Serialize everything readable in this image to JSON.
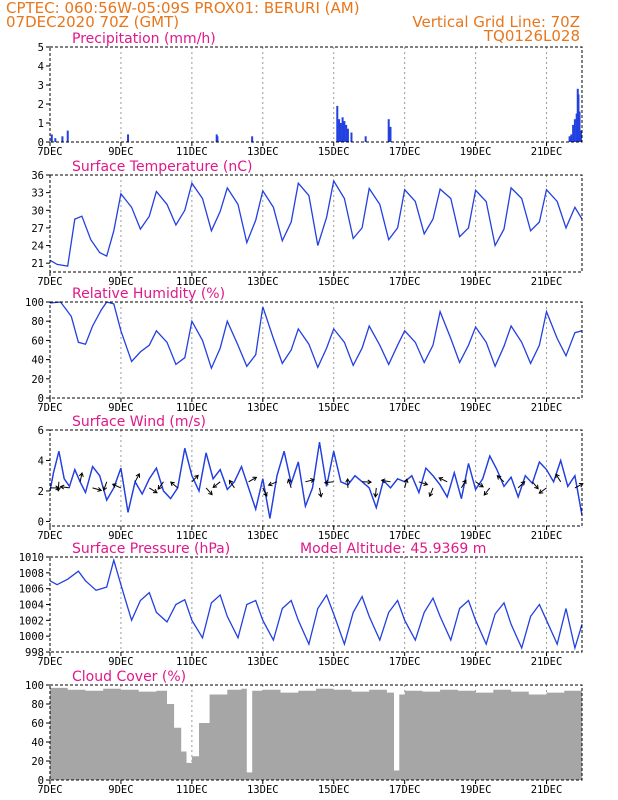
{
  "header": {
    "line1": "CPTEC:   060:56W-05:09S   PROX01: BERURI (AM)",
    "line2_left": "07DEC2020 70Z (GMT)",
    "line2_right": "Vertical Grid Line: 70Z",
    "line3_right": "TQ0126L028"
  },
  "colors": {
    "series": "#2340e0",
    "title": "#e0188c",
    "header": "#e8761b",
    "cloud": "#a6a6a6"
  },
  "x_axis": {
    "start_label": "7DEC",
    "ticks": [
      "7DEC",
      "9DEC",
      "11DEC",
      "13DEC",
      "15DEC",
      "17DEC",
      "19DEC",
      "21DEC"
    ],
    "range_days": [
      7,
      22
    ]
  },
  "extra_label": "Model Altitude: 45.9369 m",
  "chart_data": [
    {
      "type": "bar",
      "title": "Precipitation (mm/h)",
      "ylim": [
        0,
        5
      ],
      "yticks": [
        "0",
        "1",
        "2",
        "3",
        "4",
        "5"
      ],
      "x": [
        7.05,
        7.15,
        7.35,
        7.5,
        9.2,
        11.7,
        11.72,
        12.7,
        15.1,
        15.15,
        15.2,
        15.25,
        15.3,
        15.35,
        15.4,
        15.5,
        15.9,
        16.55,
        16.6,
        21.65,
        21.7,
        21.75,
        21.8,
        21.85,
        21.88,
        21.9,
        21.93,
        21.97
      ],
      "values": [
        0.4,
        0.2,
        0.3,
        0.6,
        0.4,
        0.4,
        0.3,
        0.3,
        1.9,
        1.2,
        1.0,
        1.3,
        1.1,
        0.9,
        0.7,
        0.5,
        0.3,
        1.2,
        0.8,
        0.3,
        0.4,
        0.9,
        1.2,
        1.5,
        2.8,
        2.5,
        1.6,
        0.6
      ]
    },
    {
      "type": "line",
      "title": "Surface Temperature (nC)",
      "ylim": [
        19.5,
        36
      ],
      "yticks": [
        "21",
        "24",
        "27",
        "30",
        "33",
        "36"
      ],
      "x": [
        7.0,
        7.2,
        7.5,
        7.7,
        7.9,
        8.15,
        8.4,
        8.6,
        8.8,
        9.0,
        9.3,
        9.55,
        9.8,
        10.0,
        10.3,
        10.55,
        10.8,
        11.0,
        11.3,
        11.55,
        11.8,
        12.0,
        12.3,
        12.55,
        12.8,
        13.0,
        13.3,
        13.55,
        13.8,
        14.0,
        14.3,
        14.55,
        14.8,
        15.0,
        15.3,
        15.55,
        15.8,
        16.0,
        16.3,
        16.55,
        16.8,
        17.0,
        17.3,
        17.55,
        17.8,
        18.0,
        18.3,
        18.55,
        18.8,
        19.0,
        19.3,
        19.55,
        19.8,
        20.0,
        20.3,
        20.55,
        20.8,
        21.0,
        21.3,
        21.55,
        21.8,
        22.0
      ],
      "values": [
        21.5,
        20.8,
        20.5,
        28.5,
        29.0,
        25.0,
        22.8,
        22.2,
        26.5,
        32.8,
        30.5,
        26.8,
        29.0,
        33.2,
        31.0,
        27.5,
        30.0,
        34.6,
        32.0,
        26.5,
        29.8,
        33.8,
        31.0,
        24.5,
        28.3,
        33.3,
        30.5,
        24.8,
        28.0,
        34.6,
        32.5,
        24.0,
        28.8,
        35.0,
        32.0,
        25.2,
        27.0,
        33.7,
        31.0,
        25.0,
        27.0,
        33.5,
        31.5,
        26.0,
        28.5,
        33.6,
        32.0,
        25.5,
        27.0,
        33.4,
        31.5,
        24.0,
        26.8,
        33.8,
        32.0,
        26.5,
        28.0,
        33.5,
        31.5,
        27.0,
        30.5,
        28.5
      ]
    },
    {
      "type": "line",
      "title": "Relative Humidity (%)",
      "ylim": [
        0,
        100
      ],
      "yticks": [
        "0",
        "20",
        "40",
        "60",
        "80",
        "100"
      ],
      "x": [
        7.0,
        7.3,
        7.6,
        7.8,
        8.0,
        8.2,
        8.45,
        8.6,
        8.8,
        9.0,
        9.3,
        9.55,
        9.8,
        10.0,
        10.3,
        10.55,
        10.8,
        11.0,
        11.3,
        11.55,
        11.8,
        12.0,
        12.3,
        12.55,
        12.8,
        13.0,
        13.3,
        13.55,
        13.8,
        14.0,
        14.3,
        14.55,
        14.8,
        15.0,
        15.3,
        15.55,
        15.8,
        16.0,
        16.3,
        16.55,
        16.8,
        17.0,
        17.3,
        17.55,
        17.8,
        18.0,
        18.3,
        18.55,
        18.8,
        19.0,
        19.3,
        19.55,
        19.8,
        20.0,
        20.3,
        20.55,
        20.8,
        21.0,
        21.3,
        21.55,
        21.8,
        22.0
      ],
      "values": [
        99,
        100,
        85,
        58,
        56,
        75,
        92,
        100,
        98,
        70,
        38,
        48,
        55,
        70,
        58,
        35,
        42,
        80,
        60,
        31,
        52,
        80,
        55,
        33,
        45,
        95,
        62,
        36,
        50,
        72,
        56,
        32,
        52,
        72,
        58,
        34,
        52,
        75,
        55,
        35,
        55,
        70,
        58,
        37,
        55,
        90,
        62,
        37,
        55,
        74,
        58,
        33,
        54,
        75,
        58,
        36,
        55,
        90,
        62,
        44,
        68,
        70
      ]
    },
    {
      "type": "line",
      "title": "Surface Wind (m/s)",
      "ylim": [
        -0.3,
        6
      ],
      "yticks": [
        "0",
        "2",
        "4",
        "6"
      ],
      "x": [
        7.0,
        7.1,
        7.25,
        7.4,
        7.55,
        7.7,
        7.85,
        8.0,
        8.2,
        8.4,
        8.6,
        8.8,
        9.0,
        9.2,
        9.4,
        9.6,
        9.8,
        10.0,
        10.2,
        10.4,
        10.6,
        10.8,
        11.0,
        11.2,
        11.4,
        11.6,
        11.8,
        12.0,
        12.2,
        12.4,
        12.6,
        12.8,
        13.0,
        13.2,
        13.4,
        13.6,
        13.8,
        14.0,
        14.2,
        14.4,
        14.6,
        14.8,
        15.0,
        15.2,
        15.4,
        15.6,
        15.8,
        16.0,
        16.2,
        16.4,
        16.6,
        16.8,
        17.0,
        17.2,
        17.4,
        17.6,
        17.8,
        18.0,
        18.2,
        18.4,
        18.6,
        18.8,
        19.0,
        19.2,
        19.4,
        19.6,
        19.8,
        20.0,
        20.2,
        20.4,
        20.6,
        20.8,
        21.0,
        21.2,
        21.4,
        21.6,
        21.8,
        22.0
      ],
      "values": [
        2.0,
        3.2,
        4.6,
        2.8,
        2.3,
        3.4,
        2.6,
        1.9,
        3.6,
        3.0,
        1.4,
        2.2,
        3.5,
        0.6,
        2.6,
        1.8,
        2.8,
        3.5,
        2.0,
        1.5,
        2.2,
        4.8,
        3.0,
        2.0,
        4.5,
        2.8,
        3.4,
        2.1,
        2.6,
        3.6,
        2.2,
        0.8,
        2.8,
        0.2,
        3.0,
        4.6,
        2.5,
        3.9,
        1.0,
        2.2,
        5.2,
        2.3,
        4.6,
        2.6,
        2.4,
        3.0,
        2.6,
        2.2,
        0.9,
        2.7,
        2.2,
        2.8,
        2.6,
        3.0,
        1.9,
        3.5,
        3.0,
        2.4,
        1.6,
        3.2,
        1.5,
        3.8,
        2.1,
        2.8,
        4.3,
        3.4,
        2.3,
        2.9,
        1.6,
        3.0,
        2.5,
        3.9,
        3.4,
        2.6,
        4.0,
        2.3,
        3.0,
        0.4
      ]
    },
    {
      "type": "line",
      "title": "Surface Pressure (hPa)",
      "ylim": [
        998,
        1010
      ],
      "yticks": [
        "998",
        "1000",
        "1002",
        "1004",
        "1006",
        "1008",
        "1010"
      ],
      "x": [
        7.0,
        7.2,
        7.5,
        7.8,
        8.0,
        8.3,
        8.6,
        8.8,
        9.0,
        9.3,
        9.55,
        9.8,
        10.0,
        10.3,
        10.55,
        10.8,
        11.0,
        11.3,
        11.55,
        11.8,
        12.0,
        12.3,
        12.55,
        12.8,
        13.0,
        13.3,
        13.55,
        13.8,
        14.0,
        14.3,
        14.55,
        14.8,
        15.0,
        15.3,
        15.55,
        15.8,
        16.0,
        16.3,
        16.55,
        16.8,
        17.0,
        17.3,
        17.55,
        17.8,
        18.0,
        18.3,
        18.55,
        18.8,
        19.0,
        19.3,
        19.55,
        19.8,
        20.0,
        20.3,
        20.55,
        20.8,
        21.0,
        21.3,
        21.55,
        21.8,
        22.0
      ],
      "values": [
        1007,
        1006.5,
        1007.2,
        1008.2,
        1007.0,
        1005.8,
        1006.2,
        1009.6,
        1006.5,
        1002.0,
        1004.5,
        1005.5,
        1003.0,
        1001.8,
        1004.0,
        1004.6,
        1002.0,
        999.8,
        1004.2,
        1005.2,
        1002.5,
        999.8,
        1004.0,
        1004.5,
        1002.0,
        999.5,
        1003.5,
        1004.5,
        1002.0,
        999.0,
        1003.5,
        1005.2,
        1002.8,
        999.0,
        1003.0,
        1005.0,
        1002.5,
        999.5,
        1003.0,
        1004.5,
        1002.0,
        999.5,
        1003.0,
        1004.8,
        1002.5,
        999.5,
        1003.5,
        1004.5,
        1002.0,
        999.0,
        1002.8,
        1004.2,
        1001.5,
        998.5,
        1002.5,
        1004.0,
        1002.0,
        999.0,
        1003.5,
        998.5,
        1001.5
      ]
    },
    {
      "type": "bar",
      "title": "Cloud Cover (%)",
      "ylim": [
        0,
        100
      ],
      "yticks": [
        "0",
        "20",
        "40",
        "60",
        "80",
        "100"
      ],
      "x": [
        7.0,
        7.5,
        8.0,
        8.5,
        9.0,
        9.5,
        10.0,
        10.3,
        10.5,
        10.7,
        10.85,
        11.0,
        11.2,
        11.5,
        12.0,
        12.4,
        12.55,
        12.7,
        13.0,
        13.5,
        14.0,
        14.5,
        15.0,
        15.5,
        16.0,
        16.5,
        16.7,
        16.85,
        17.0,
        17.5,
        18.0,
        18.5,
        19.0,
        19.5,
        20.0,
        20.5,
        21.0,
        21.5,
        22.0
      ],
      "values": [
        97,
        95,
        94,
        96,
        95,
        93,
        94,
        80,
        55,
        30,
        18,
        25,
        60,
        90,
        95,
        96,
        8,
        94,
        95,
        92,
        94,
        96,
        95,
        93,
        95,
        92,
        10,
        90,
        94,
        93,
        95,
        94,
        92,
        95,
        93,
        90,
        92,
        94,
        95
      ]
    }
  ]
}
